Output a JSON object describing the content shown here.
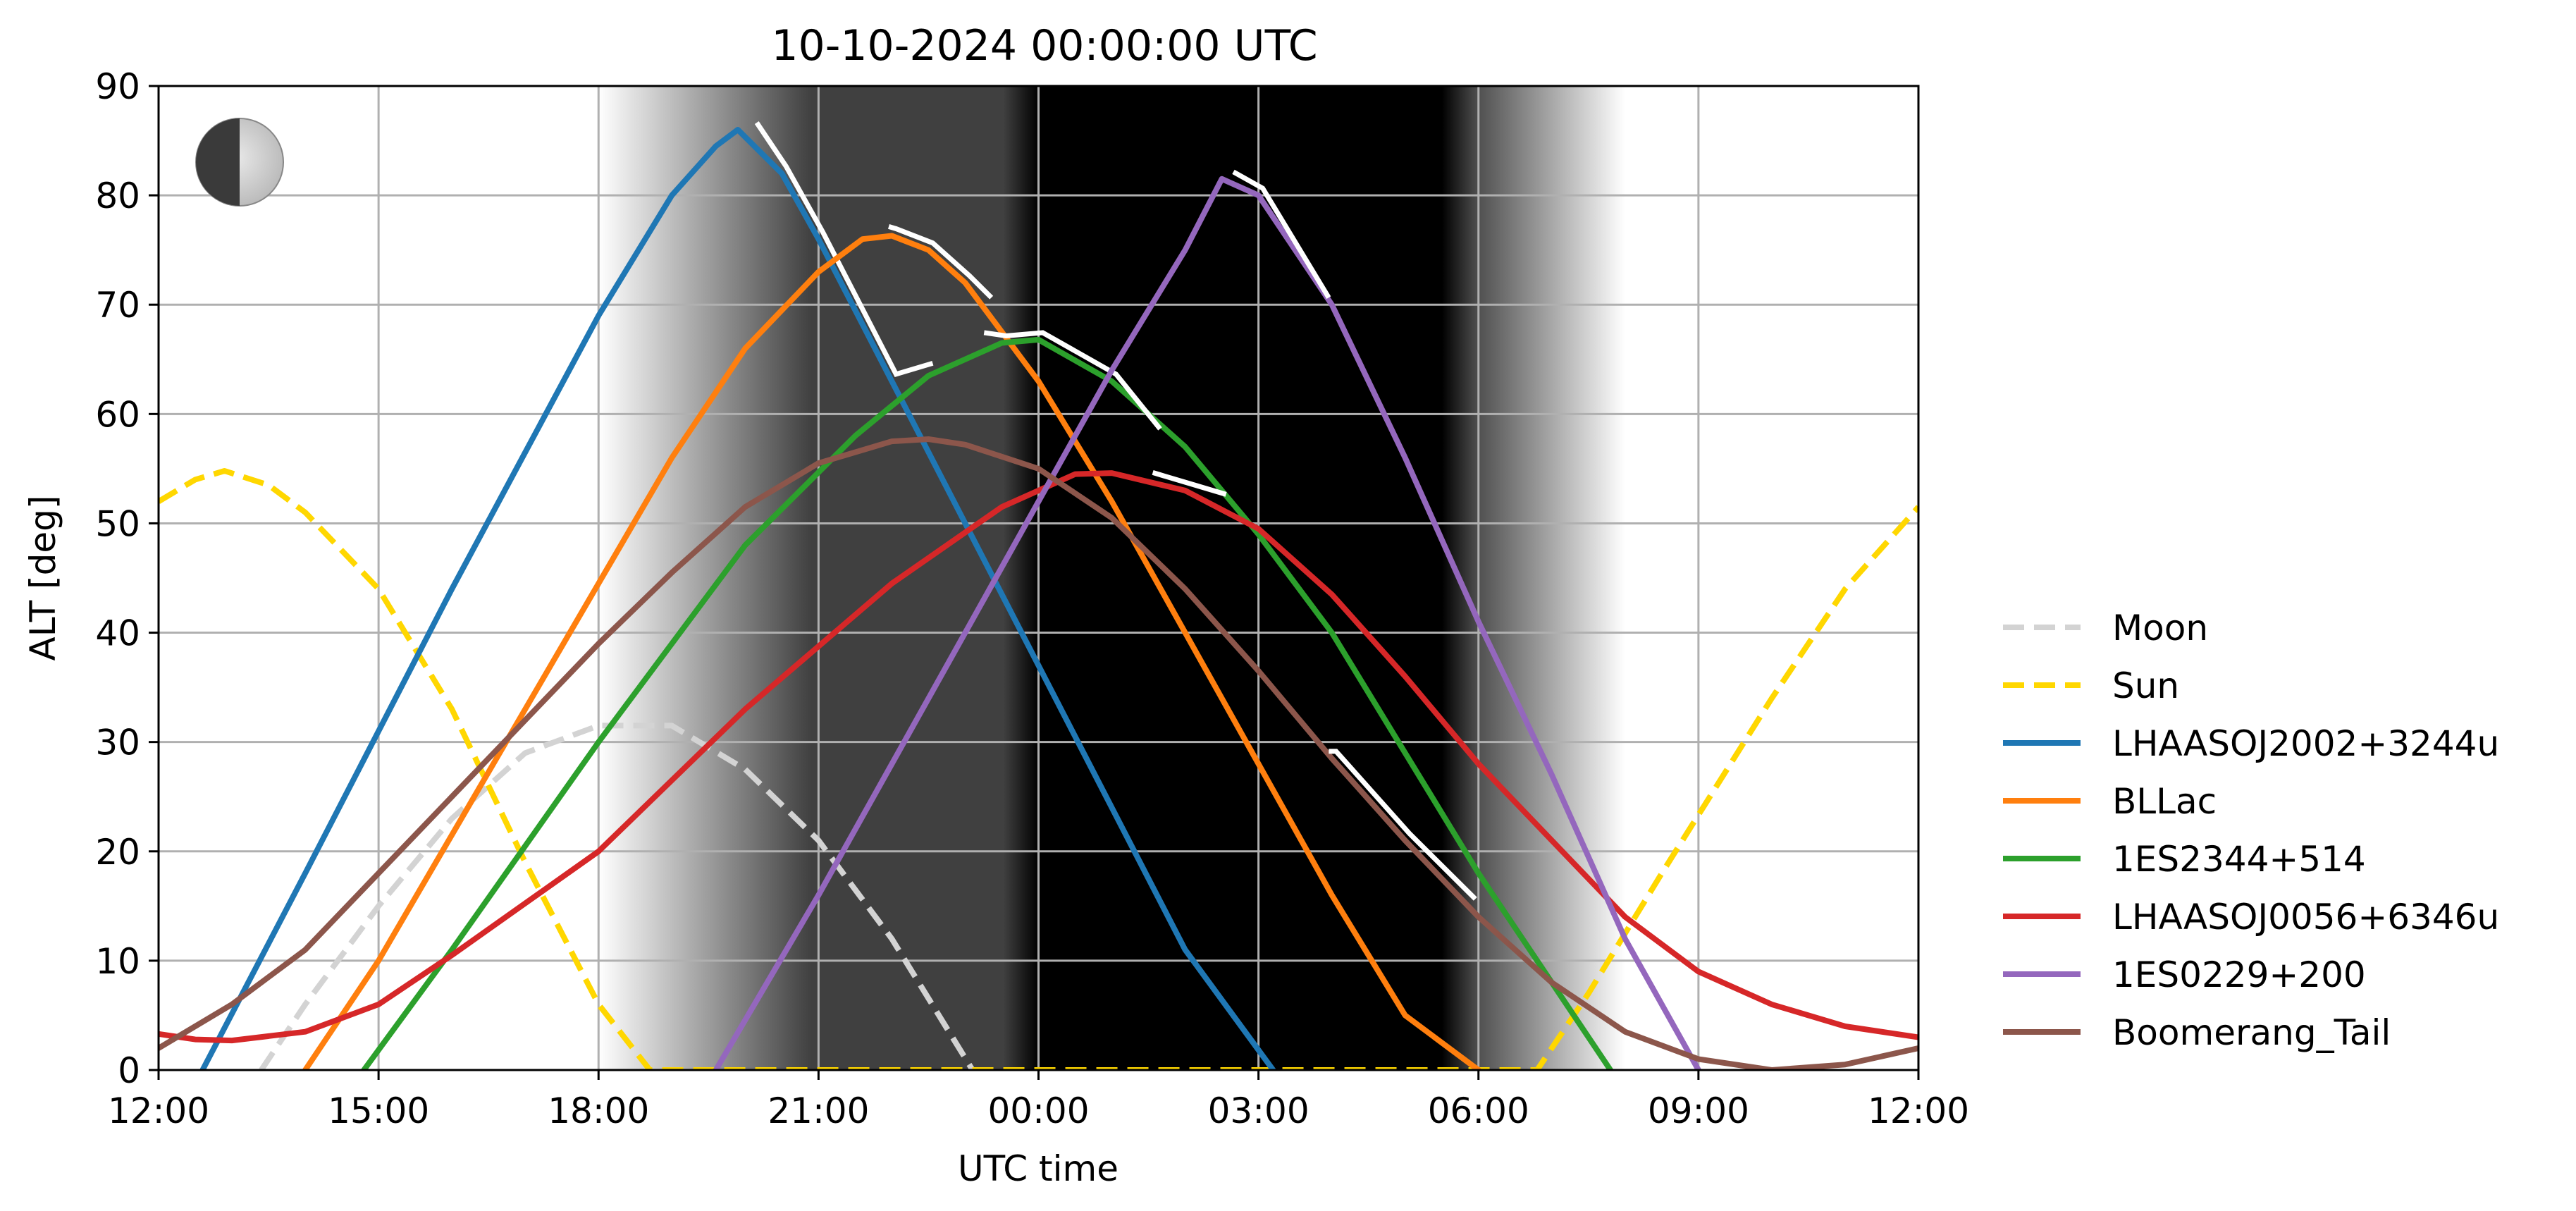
{
  "chart_data": {
    "type": "line",
    "title": "10-10-2024 00:00:00 UTC",
    "xlabel": "UTC time",
    "ylabel": "ALT [deg]",
    "xlim": [
      0,
      24
    ],
    "ylim": [
      0,
      90
    ],
    "x_unit": "hours after 12:00 UTC",
    "xticks": [
      0,
      3,
      6,
      9,
      12,
      15,
      18,
      21,
      24
    ],
    "xtick_labels": [
      "12:00",
      "15:00",
      "18:00",
      "21:00",
      "00:00",
      "03:00",
      "06:00",
      "09:00",
      "12:00"
    ],
    "yticks": [
      0,
      10,
      20,
      30,
      40,
      50,
      60,
      70,
      80,
      90
    ],
    "grid": true,
    "legend_position": "right, outside plot",
    "moon_phase_icon": "half-moon-icon",
    "night_shading": {
      "twilight_start": 6.0,
      "astronomical_dark_start": 8.9,
      "full_dark_start": 12.0,
      "full_dark_end": 17.5,
      "astronomical_dark_end": 18.0,
      "twilight_end": 20.0
    },
    "series": [
      {
        "name": "Moon",
        "color": "#d3d3d3",
        "style": "dashed",
        "points": [
          [
            1.4,
            0
          ],
          [
            2,
            6
          ],
          [
            3,
            15
          ],
          [
            4,
            23
          ],
          [
            5,
            29
          ],
          [
            6,
            31.5
          ],
          [
            7,
            31.5
          ],
          [
            8,
            27.5
          ],
          [
            9,
            21
          ],
          [
            10,
            12
          ],
          [
            11.1,
            0
          ]
        ]
      },
      {
        "name": "Sun",
        "color": "#ffd700",
        "style": "dashed",
        "points": [
          [
            0,
            52
          ],
          [
            0.5,
            54
          ],
          [
            0.9,
            54.8
          ],
          [
            1.5,
            53.5
          ],
          [
            2,
            51
          ],
          [
            3,
            44
          ],
          [
            4,
            33
          ],
          [
            5,
            19
          ],
          [
            6,
            6
          ],
          [
            6.7,
            0
          ],
          [
            18.8,
            0
          ],
          [
            19.5,
            7
          ],
          [
            20.5,
            18
          ],
          [
            22,
            34
          ],
          [
            23,
            44
          ],
          [
            24,
            51.5
          ]
        ]
      },
      {
        "name": "LHAASOJ2002+3244u",
        "color": "#1f77b4",
        "style": "solid",
        "highlight": [
          [
            8.1,
            86
          ],
          [
            10.5,
            64
          ]
        ],
        "points": [
          [
            0.6,
            0
          ],
          [
            2,
            18
          ],
          [
            4,
            44
          ],
          [
            6,
            69
          ],
          [
            7,
            80
          ],
          [
            7.6,
            84.5
          ],
          [
            7.9,
            86
          ],
          [
            8.5,
            82
          ],
          [
            9,
            76
          ],
          [
            10,
            63
          ],
          [
            11,
            50
          ],
          [
            12,
            37
          ],
          [
            13,
            24
          ],
          [
            14,
            11
          ],
          [
            15.2,
            0
          ]
        ]
      },
      {
        "name": "BLLac",
        "color": "#ff7f0e",
        "style": "solid",
        "highlight": [
          [
            9.9,
            76.5
          ],
          [
            11.3,
            70
          ]
        ],
        "points": [
          [
            2,
            0
          ],
          [
            3,
            10
          ],
          [
            5,
            33
          ],
          [
            7,
            56
          ],
          [
            8,
            66
          ],
          [
            9,
            73
          ],
          [
            9.6,
            76
          ],
          [
            10,
            76.3
          ],
          [
            10.5,
            75
          ],
          [
            11,
            72
          ],
          [
            12,
            63
          ],
          [
            13,
            52
          ],
          [
            14,
            40
          ],
          [
            15,
            28
          ],
          [
            16,
            16
          ],
          [
            17,
            5
          ],
          [
            18,
            0
          ]
        ]
      },
      {
        "name": "1ES2344+514",
        "color": "#2ca02c",
        "style": "solid",
        "highlight": [
          [
            11.2,
            66.8
          ],
          [
            13.6,
            58
          ]
        ],
        "points": [
          [
            2.8,
            0
          ],
          [
            4,
            11
          ],
          [
            6,
            30
          ],
          [
            8,
            48
          ],
          [
            9.5,
            58
          ],
          [
            10.5,
            63.5
          ],
          [
            11.5,
            66.5
          ],
          [
            12,
            66.8
          ],
          [
            13,
            63
          ],
          [
            14,
            57
          ],
          [
            15,
            49
          ],
          [
            16,
            40
          ],
          [
            17,
            29
          ],
          [
            18,
            18
          ],
          [
            19,
            8
          ],
          [
            19.8,
            0
          ]
        ]
      },
      {
        "name": "LHAASOJ0056+6346u",
        "color": "#d62728",
        "style": "solid",
        "highlight": [
          [
            13.5,
            54
          ],
          [
            14.5,
            52
          ]
        ],
        "points": [
          [
            0,
            3.3
          ],
          [
            0.5,
            2.8
          ],
          [
            1,
            2.7
          ],
          [
            2,
            3.5
          ],
          [
            3,
            6
          ],
          [
            4,
            10.5
          ],
          [
            6,
            20
          ],
          [
            8,
            33
          ],
          [
            10,
            44.5
          ],
          [
            11.5,
            51.5
          ],
          [
            12.5,
            54.5
          ],
          [
            13,
            54.6
          ],
          [
            14,
            53
          ],
          [
            15,
            49.5
          ],
          [
            16,
            43.5
          ],
          [
            17,
            36
          ],
          [
            18,
            28
          ],
          [
            19,
            21
          ],
          [
            20,
            14
          ],
          [
            21,
            9
          ],
          [
            22,
            6
          ],
          [
            23,
            4
          ],
          [
            24,
            3
          ]
        ]
      },
      {
        "name": "1ES0229+200",
        "color": "#9467bd",
        "style": "solid",
        "highlight": [
          [
            14.6,
            81.5
          ],
          [
            15.9,
            70
          ]
        ],
        "points": [
          [
            7.6,
            0
          ],
          [
            9,
            16
          ],
          [
            11,
            40
          ],
          [
            13,
            64
          ],
          [
            14,
            75
          ],
          [
            14.5,
            81.5
          ],
          [
            15,
            80
          ],
          [
            16,
            70
          ],
          [
            17,
            56
          ],
          [
            18,
            41
          ],
          [
            19,
            27
          ],
          [
            20,
            12
          ],
          [
            21,
            0
          ]
        ]
      },
      {
        "name": "Boomerang_Tail",
        "color": "#8c564b",
        "style": "solid",
        "highlight": [
          [
            15.9,
            28.5
          ],
          [
            17.9,
            15
          ]
        ],
        "points": [
          [
            0,
            2
          ],
          [
            1,
            6
          ],
          [
            2,
            11
          ],
          [
            3,
            18
          ],
          [
            4,
            25
          ],
          [
            5,
            32
          ],
          [
            6,
            39
          ],
          [
            7,
            45.5
          ],
          [
            8,
            51.5
          ],
          [
            9,
            55.5
          ],
          [
            10,
            57.5
          ],
          [
            10.5,
            57.7
          ],
          [
            11,
            57.2
          ],
          [
            12,
            55
          ],
          [
            13,
            50.5
          ],
          [
            14,
            44
          ],
          [
            15,
            36.5
          ],
          [
            16,
            28.5
          ],
          [
            17,
            21
          ],
          [
            18,
            14
          ],
          [
            19,
            8
          ],
          [
            20,
            3.5
          ],
          [
            21,
            1
          ],
          [
            22,
            0
          ],
          [
            23,
            0.5
          ],
          [
            24,
            2
          ]
        ]
      }
    ]
  }
}
